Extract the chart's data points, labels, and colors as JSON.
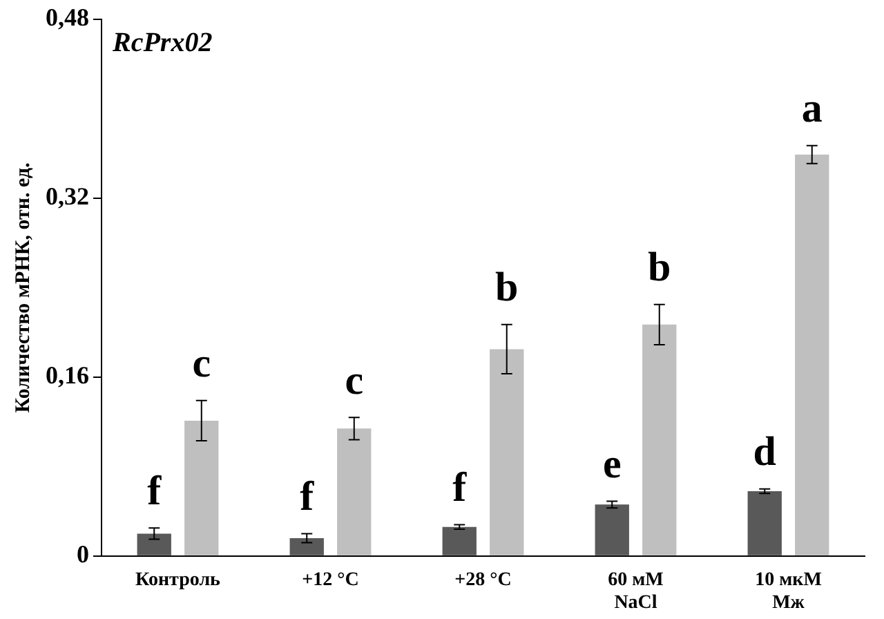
{
  "chart_data": {
    "type": "bar",
    "ylabel": "Количество мРНК, отн. ед.",
    "categories": [
      "Контроль",
      "+12 °С",
      "+28 °С",
      "60 мМ\nNaCl",
      "10 мкМ\nМж"
    ],
    "series": [
      {
        "color": "#595959",
        "values": [
          0.02,
          0.016,
          0.026,
          0.046,
          0.058
        ],
        "errors": [
          0.005,
          0.004,
          0.002,
          0.003,
          0.002
        ]
      },
      {
        "color": "#bfbfbf",
        "values": [
          0.121,
          0.114,
          0.185,
          0.207,
          0.359
        ],
        "errors": [
          0.018,
          0.01,
          0.022,
          0.018,
          0.008
        ]
      }
    ],
    "ylim": [
      0,
      0.48
    ],
    "yticks": [
      {
        "value": 0,
        "label": "0"
      },
      {
        "value": 0.16,
        "label": "0,16"
      },
      {
        "value": 0.32,
        "label": "0,32"
      },
      {
        "value": 0.48,
        "label": "0,48"
      }
    ],
    "grid": false,
    "legend": false,
    "annotations": [
      "RcPrx02",
      {
        "text": "f",
        "x": "Контроль",
        "y": 0.02
      },
      {
        "text": "c",
        "x": "Контроль",
        "y": 0.121
      },
      {
        "text": "f",
        "x": "+12 °С",
        "y": 0.016
      },
      {
        "text": "c",
        "x": "+12 °С",
        "y": 0.114
      },
      {
        "text": "f",
        "x": "+28 °С",
        "y": 0.026
      },
      {
        "text": "b",
        "x": "+28 °С",
        "y": 0.185
      },
      {
        "text": "e",
        "x": "60 мМ\nNaCl",
        "y": 0.046
      },
      {
        "text": "b",
        "x": "60 мМ\nNaCl",
        "y": 0.207
      },
      {
        "text": "d",
        "x": "10 мкМ\nМж",
        "y": 0.058
      },
      {
        "text": "a",
        "x": "10 мкМ\nМж",
        "y": 0.359
      }
    ]
  }
}
